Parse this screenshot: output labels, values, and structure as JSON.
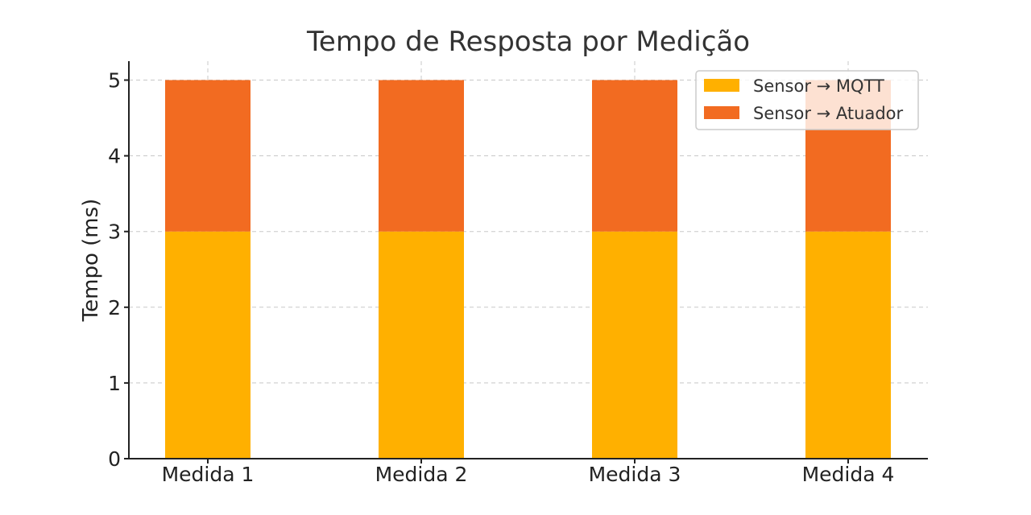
{
  "chart_data": {
    "type": "bar",
    "stacked": true,
    "title": "Tempo de Resposta por Medição",
    "xlabel": "",
    "ylabel": "Tempo (ms)",
    "ylim": [
      0,
      5.25
    ],
    "yticks": [
      0,
      1,
      2,
      3,
      4,
      5
    ],
    "grid": true,
    "legend_position": "top-right",
    "categories": [
      "Medida 1",
      "Medida 2",
      "Medida 3",
      "Medida 4"
    ],
    "series": [
      {
        "name": "Sensor → MQTT",
        "values": [
          3,
          3,
          3,
          3
        ],
        "color": "#FFB000"
      },
      {
        "name": "Sensor → Atuador",
        "values": [
          2,
          2,
          2,
          2
        ],
        "color": "#F26B21"
      }
    ]
  }
}
